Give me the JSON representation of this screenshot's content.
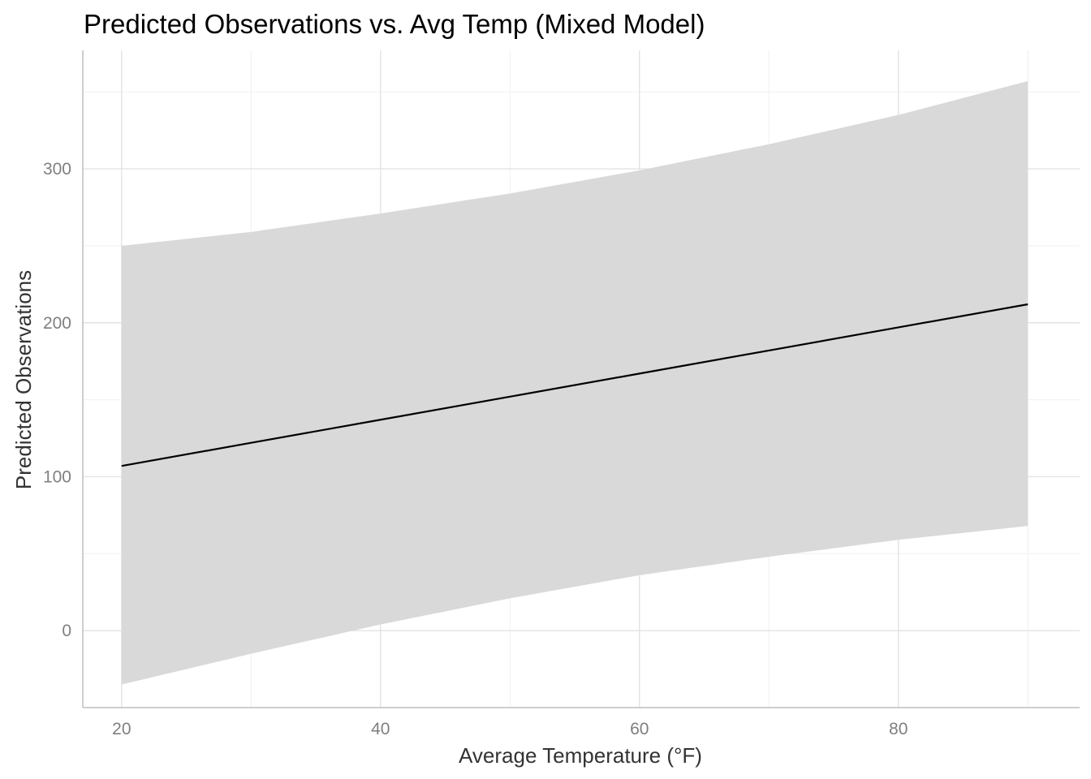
{
  "chart_data": {
    "type": "line",
    "title": "Predicted Observations vs. Avg Temp (Mixed Model)",
    "xlabel": "Average Temperature (°F)",
    "ylabel": "Predicted Observations",
    "xlim": [
      17,
      94
    ],
    "ylim": [
      -50,
      377
    ],
    "x_ticks": [
      20,
      40,
      60,
      80
    ],
    "x_tick_labels": [
      "20",
      "40",
      "60",
      "80"
    ],
    "y_ticks": [
      0,
      100,
      200,
      300
    ],
    "y_tick_labels": [
      "0",
      "100",
      "200",
      "300"
    ],
    "grid": true,
    "legend": "none",
    "series": [
      {
        "x": [
          20,
          30,
          40,
          50,
          60,
          70,
          80,
          90
        ],
        "fit": [
          107,
          122,
          137,
          152,
          167,
          182,
          197,
          212
        ],
        "upper": [
          250,
          259,
          271,
          284,
          299,
          316,
          335,
          357
        ],
        "lower": [
          -35,
          -15,
          4,
          21,
          36,
          48,
          59,
          68
        ]
      }
    ],
    "colors": {
      "line": "#000000",
      "ribbon": "#d9d9d9",
      "grid_major": "#e3e3e3",
      "grid_minor": "#f0f0f0",
      "axis": "#bdbdbd"
    }
  }
}
